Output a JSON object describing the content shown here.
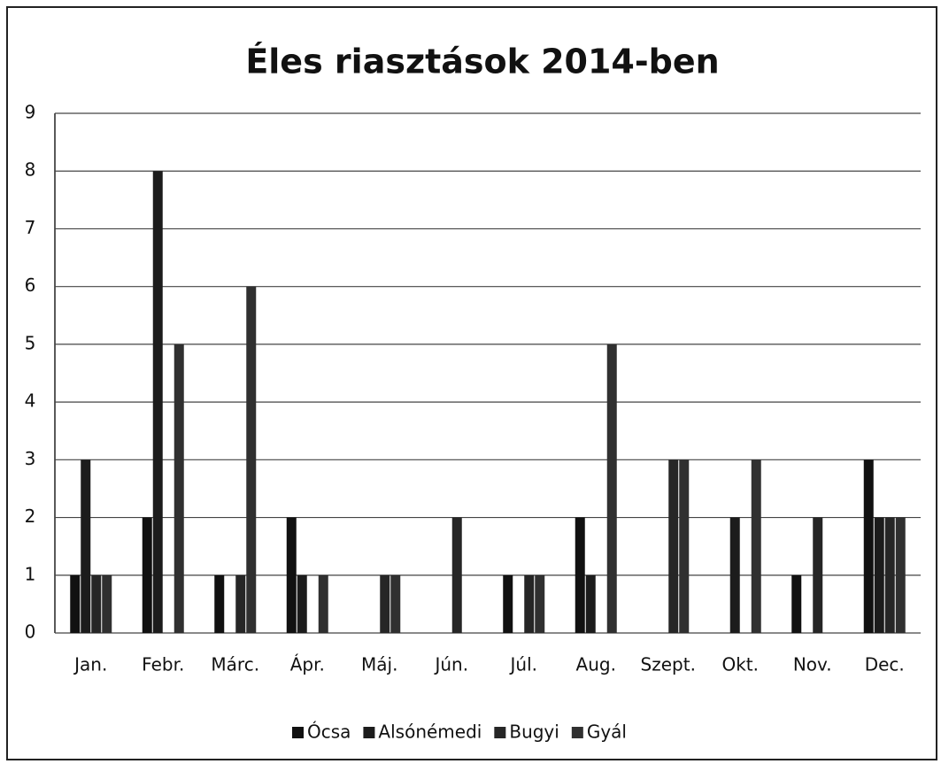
{
  "chart_data": {
    "type": "bar",
    "title": "Éles riasztások 2014-ben",
    "categories": [
      "Jan.",
      "Febr.",
      "Márc.",
      "Ápr.",
      "Máj.",
      "Jún.",
      "Júl.",
      "Aug.",
      "Szept.",
      "Okt.",
      "Nov.",
      "Dec."
    ],
    "series": [
      {
        "name": "Ócsa",
        "color": "#111111",
        "values": [
          1,
          2,
          1,
          2,
          0,
          0,
          1,
          2,
          0,
          0,
          1,
          3
        ]
      },
      {
        "name": "Alsónémedi",
        "color": "#1c1c1c",
        "values": [
          3,
          8,
          0,
          1,
          0,
          0,
          0,
          1,
          0,
          2,
          0,
          2
        ]
      },
      {
        "name": "Bugyi",
        "color": "#262626",
        "values": [
          1,
          0,
          1,
          0,
          1,
          2,
          1,
          0,
          3,
          0,
          2,
          2
        ]
      },
      {
        "name": "Gyál",
        "color": "#303030",
        "values": [
          1,
          5,
          6,
          1,
          1,
          0,
          1,
          5,
          3,
          3,
          0,
          2
        ]
      }
    ],
    "ylim": [
      0,
      9
    ],
    "yticks": [
      0,
      1,
      2,
      3,
      4,
      5,
      6,
      7,
      8,
      9
    ],
    "grid": true,
    "legend": "bottom"
  }
}
